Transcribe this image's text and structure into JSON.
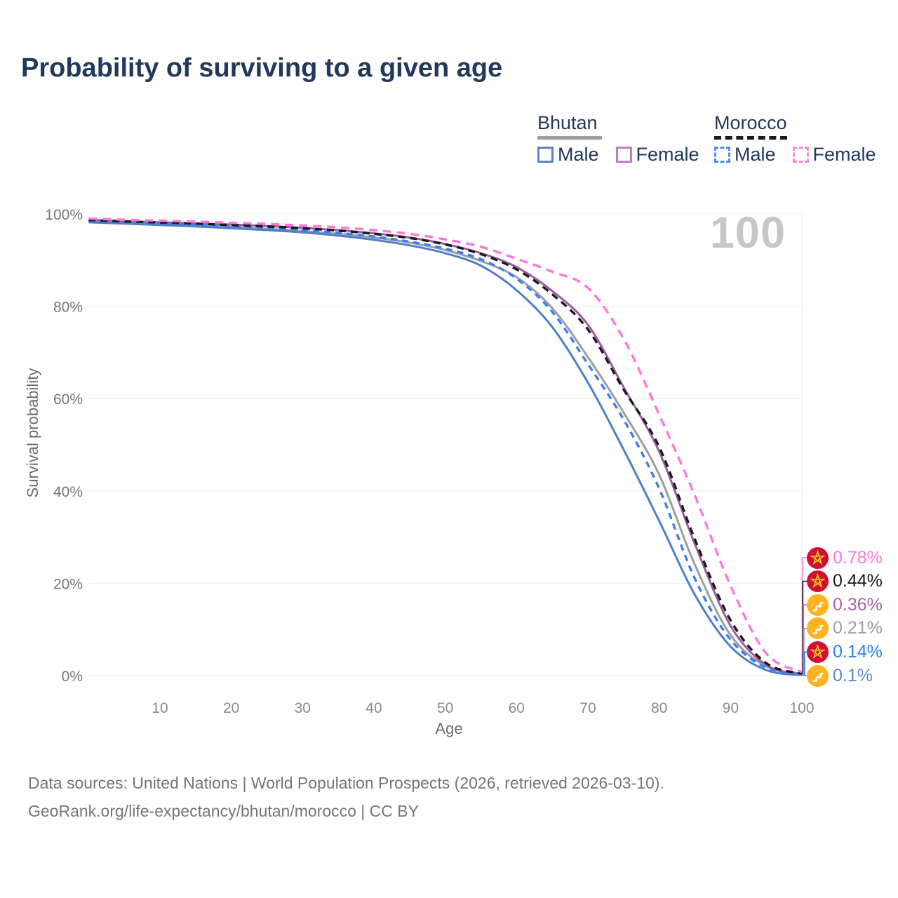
{
  "title": "Probability of surviving to a given age",
  "watermark": "100",
  "legend": {
    "groups": [
      {
        "name": "Bhutan",
        "line_style": "solid",
        "line_color": "#a0a0a0",
        "items": [
          {
            "label": "Male",
            "color": "#5b84c7"
          },
          {
            "label": "Female",
            "color": "#c07fc2"
          }
        ]
      },
      {
        "name": "Morocco",
        "line_style": "dashed",
        "line_color": "#1a1a1a",
        "items": [
          {
            "label": "Male",
            "color": "#4a8cf7"
          },
          {
            "label": "Female",
            "color": "#ff85e2"
          }
        ]
      }
    ]
  },
  "chart_data": {
    "type": "line",
    "title": "Probability of surviving to a given age",
    "xlabel": "Age",
    "ylabel": "Survival probability",
    "xlim": [
      0,
      100
    ],
    "ylim": [
      0,
      100
    ],
    "grid": "horizontal",
    "x_ticks": [
      10,
      20,
      30,
      40,
      50,
      60,
      70,
      80,
      90,
      100
    ],
    "y_ticks": [
      100,
      80,
      60,
      40,
      20,
      0
    ],
    "y_tick_labels": [
      "100%",
      "80%",
      "60%",
      "40%",
      "20%",
      "0%"
    ],
    "ages": [
      0,
      5,
      10,
      15,
      20,
      25,
      30,
      35,
      40,
      45,
      50,
      55,
      60,
      65,
      70,
      75,
      80,
      85,
      90,
      95,
      100
    ],
    "series": [
      {
        "name": "Bhutan Both sexes",
        "country": "Bhutan",
        "sex": "Both",
        "color": "#9e9e9e",
        "dash": "",
        "values": [
          98.4,
          98.1,
          97.8,
          97.5,
          97.2,
          96.8,
          96.3,
          95.7,
          94.9,
          93.8,
          92.2,
          89.8,
          86.3,
          79.6,
          69.0,
          57.0,
          43.5,
          24.0,
          8.8,
          2.0,
          0.21
        ]
      },
      {
        "name": "Bhutan Male",
        "country": "Bhutan",
        "sex": "Male",
        "color": "#4e7fc9",
        "dash": "",
        "values": [
          98.2,
          97.9,
          97.6,
          97.3,
          96.9,
          96.5,
          96.0,
          95.3,
          94.4,
          93.2,
          91.5,
          88.8,
          83.5,
          75.5,
          63.5,
          49.0,
          33.5,
          17.5,
          6.3,
          1.2,
          0.1
        ]
      },
      {
        "name": "Bhutan Female",
        "country": "Bhutan",
        "sex": "Female",
        "color": "#9d5ba1",
        "dash": "",
        "values": [
          98.7,
          98.45,
          98.2,
          97.95,
          97.7,
          97.4,
          97.0,
          96.5,
          95.8,
          94.9,
          93.5,
          91.5,
          88.5,
          83.3,
          76.0,
          62.5,
          48.5,
          28.5,
          10.8,
          2.3,
          0.36
        ]
      },
      {
        "name": "Morocco Male",
        "country": "Morocco",
        "sex": "Male",
        "color": "#3d7ef2",
        "dash": "9 7",
        "values": [
          98.6,
          98.3,
          98.0,
          97.7,
          97.4,
          97.0,
          96.5,
          95.9,
          95.1,
          94.0,
          92.5,
          90.2,
          86.0,
          78.8,
          67.5,
          55.5,
          40.5,
          21.0,
          7.8,
          1.7,
          0.14
        ]
      },
      {
        "name": "Morocco Both sexes",
        "country": "Morocco",
        "sex": "Both",
        "color": "#1a1a1a",
        "dash": "10 7",
        "values": [
          98.7,
          98.4,
          98.15,
          97.9,
          97.6,
          97.3,
          96.9,
          96.4,
          95.7,
          94.8,
          93.4,
          91.3,
          88.0,
          82.6,
          75.0,
          62.0,
          49.5,
          29.5,
          12.0,
          2.7,
          0.44
        ]
      },
      {
        "name": "Morocco Female",
        "country": "Morocco",
        "sex": "Female",
        "color": "#ff77dd",
        "dash": "12 8",
        "values": [
          99.0,
          98.75,
          98.55,
          98.35,
          98.1,
          97.85,
          97.5,
          97.1,
          96.5,
          95.7,
          94.5,
          92.9,
          90.3,
          87.5,
          84.0,
          73.0,
          56.5,
          39.0,
          19.5,
          4.8,
          0.78
        ]
      }
    ],
    "end_labels": [
      {
        "text": "0.78%",
        "color": "#ff77dd",
        "flag": "morocco",
        "series": "Morocco Female"
      },
      {
        "text": "0.44%",
        "color": "#1a1a1a",
        "flag": "morocco",
        "series": "Morocco Both sexes"
      },
      {
        "text": "0.36%",
        "color": "#a862ab",
        "flag": "bhutan",
        "series": "Bhutan Female"
      },
      {
        "text": "0.21%",
        "color": "#9e9e9e",
        "flag": "bhutan",
        "series": "Bhutan Both sexes"
      },
      {
        "text": "0.14%",
        "color": "#2e7cf6",
        "flag": "morocco",
        "series": "Morocco Male"
      },
      {
        "text": "0.1%",
        "color": "#5e87c7",
        "flag": "bhutan",
        "series": "Bhutan Male"
      }
    ],
    "age_marker": "100"
  },
  "footer": {
    "line1": "Data sources: United Nations | World Population Prospects (2026, retrieved 2026-03-10).",
    "line2": "GeoRank.org/life-expectancy/bhutan/morocco | CC BY"
  }
}
